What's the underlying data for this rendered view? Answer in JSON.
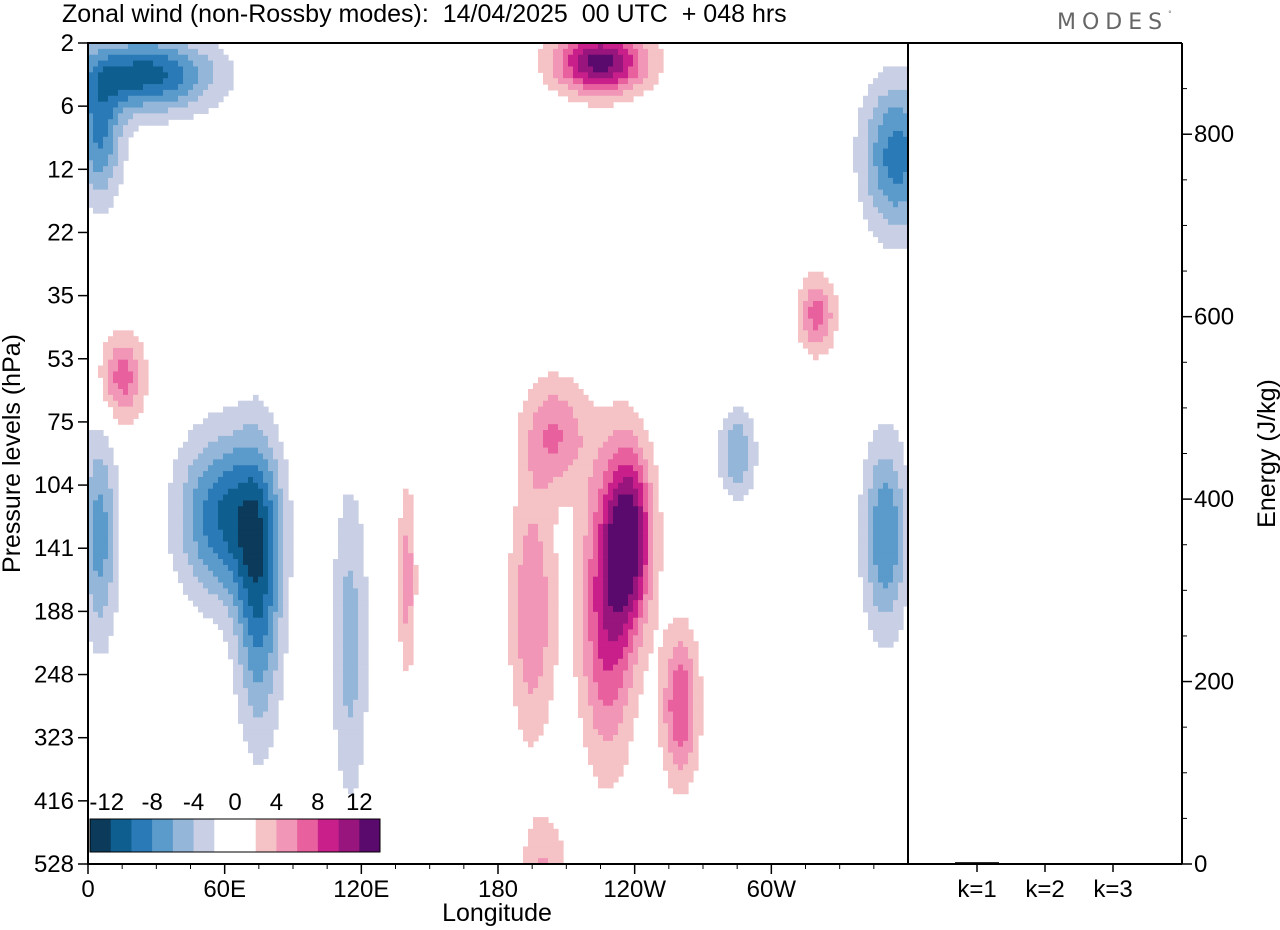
{
  "title": "Zonal wind (non-Rossby modes):  14/04/2025  00 UTC  + 048 hrs",
  "brand": "MODES",
  "brand_mark": "°",
  "colors": {
    "negative": [
      "#0b3a5a",
      "#0e5f8f",
      "#2b7ab8",
      "#5b9bcb",
      "#94b6d9",
      "#c9cfe4"
    ],
    "positive": [
      "#f5c3c5",
      "#f296b7",
      "#e8609e",
      "#c91f8a",
      "#97157c",
      "#5a0a6c"
    ],
    "neutral": "#ffffff"
  },
  "chart_data": [
    {
      "type": "heatmap",
      "title": "Zonal wind (non-Rossby modes):  14/04/2025  00 UTC  + 048 hrs",
      "xlabel": "Longitude",
      "ylabel": "Pressure levels (hPa)",
      "x_ticks": [
        "0",
        "60E",
        "120E",
        "180",
        "120W",
        "60W"
      ],
      "x_tick_values": [
        0,
        60,
        120,
        180,
        240,
        300
      ],
      "xlim": [
        0,
        360
      ],
      "y_ticks": [
        "2",
        "6",
        "12",
        "22",
        "35",
        "53",
        "75",
        "104",
        "141",
        "188",
        "248",
        "323",
        "416",
        "528"
      ],
      "colorbar": {
        "labels": [
          "-12",
          "-8",
          "-4",
          "0",
          "4",
          "8",
          "12"
        ],
        "levels": [
          -14,
          -12,
          -10,
          -8,
          -6,
          -4,
          -2,
          2,
          4,
          6,
          8,
          10,
          12,
          14
        ]
      },
      "features": [
        {
          "lon": 25,
          "level_index": 0.5,
          "value": -11,
          "radius_lon": 30,
          "radius_lev": 0.6
        },
        {
          "lon": 5,
          "level_index": 1.5,
          "value": -8,
          "radius_lon": 10,
          "radius_lev": 1.0
        },
        {
          "lon": 225,
          "level_index": 0.3,
          "value": 13,
          "radius_lon": 20,
          "radius_lev": 0.5
        },
        {
          "lon": 355,
          "level_index": 1.8,
          "value": -9,
          "radius_lon": 15,
          "radius_lev": 1.2
        },
        {
          "lon": 60,
          "level_index": 7.5,
          "value": -10,
          "radius_lon": 20,
          "radius_lev": 1.3
        },
        {
          "lon": 75,
          "level_index": 8.7,
          "value": -9,
          "radius_lon": 10,
          "radius_lev": 2.2
        },
        {
          "lon": 5,
          "level_index": 7.8,
          "value": -7,
          "radius_lon": 8,
          "radius_lev": 1.7
        },
        {
          "lon": 238,
          "level_index": 7.8,
          "value": 12,
          "radius_lon": 10,
          "radius_lev": 1.4
        },
        {
          "lon": 228,
          "level_index": 9.0,
          "value": 9,
          "radius_lon": 12,
          "radius_lev": 2.3
        },
        {
          "lon": 260,
          "level_index": 10.5,
          "value": 8,
          "radius_lon": 8,
          "radius_lev": 1.2
        },
        {
          "lon": 195,
          "level_index": 9.0,
          "value": 6,
          "radius_lon": 10,
          "radius_lev": 2.0
        },
        {
          "lon": 205,
          "level_index": 6.2,
          "value": 6,
          "radius_lon": 14,
          "radius_lev": 0.9
        },
        {
          "lon": 15,
          "level_index": 5.3,
          "value": 7,
          "radius_lon": 10,
          "radius_lev": 0.7
        },
        {
          "lon": 320,
          "level_index": 4.3,
          "value": 7,
          "radius_lon": 8,
          "radius_lev": 0.6
        },
        {
          "lon": 350,
          "level_index": 7.8,
          "value": -8,
          "radius_lon": 10,
          "radius_lev": 1.5
        },
        {
          "lon": 285,
          "level_index": 6.5,
          "value": -6,
          "radius_lon": 8,
          "radius_lev": 0.7
        },
        {
          "lon": 200,
          "level_index": 13.0,
          "value": 4,
          "radius_lon": 10,
          "radius_lev": 0.8
        },
        {
          "lon": 140,
          "level_index": 8.5,
          "value": 5,
          "radius_lon": 4,
          "radius_lev": 1.5
        },
        {
          "lon": 115,
          "level_index": 9.5,
          "value": -5,
          "radius_lon": 8,
          "radius_lev": 2.5
        }
      ]
    },
    {
      "type": "bar",
      "ylabel": "Energy (J/kg)",
      "categories": [
        "k=1",
        "k=2",
        "k=3"
      ],
      "values": [
        2,
        1,
        0.5
      ],
      "ylim": [
        0,
        900
      ],
      "y_ticks": [
        0,
        200,
        400,
        600,
        800
      ]
    }
  ]
}
